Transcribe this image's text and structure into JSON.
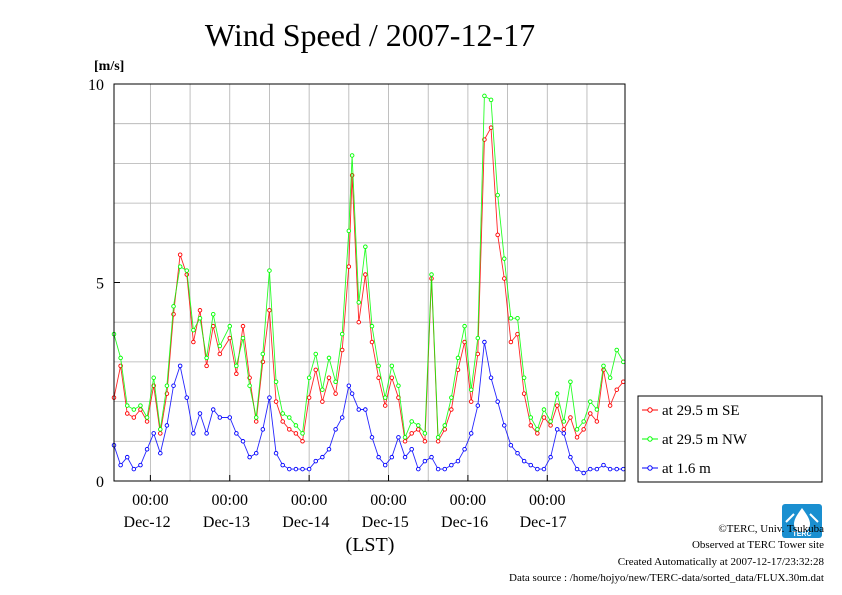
{
  "chart_data": {
    "type": "line",
    "title": "Wind Speed / 2007-12-17",
    "ylabel": "[m/s]",
    "xlabel": "(LST)",
    "ylim": [
      0,
      10
    ],
    "yticks": [
      "0",
      "5",
      "10"
    ],
    "xlim": [
      "2007-12-11T13:00",
      "2007-12-17T23:30"
    ],
    "grid": true,
    "legend_position": "right",
    "time_ticks": [
      {
        "time": "2007-12-12T00:00",
        "label": "00:00",
        "date": "Dec-12"
      },
      {
        "time": "2007-12-13T00:00",
        "label": "00:00",
        "date": "Dec-13"
      },
      {
        "time": "2007-12-14T00:00",
        "label": "00:00",
        "date": "Dec-14"
      },
      {
        "time": "2007-12-15T00:00",
        "label": "00:00",
        "date": "Dec-15"
      },
      {
        "time": "2007-12-16T00:00",
        "label": "00:00",
        "date": "Dec-16"
      },
      {
        "time": "2007-12-17T00:00",
        "label": "00:00",
        "date": "Dec-17"
      }
    ],
    "series": [
      {
        "name": "at 29.5 m SE",
        "color": "#ff0000",
        "points": [
          [
            "2007-12-11T13:00",
            2.1
          ],
          [
            "2007-12-11T15:00",
            2.9
          ],
          [
            "2007-12-11T17:00",
            1.7
          ],
          [
            "2007-12-11T19:00",
            1.6
          ],
          [
            "2007-12-11T21:00",
            1.8
          ],
          [
            "2007-12-11T23:00",
            1.5
          ],
          [
            "2007-12-12T01:00",
            2.4
          ],
          [
            "2007-12-12T03:00",
            1.2
          ],
          [
            "2007-12-12T05:00",
            2.2
          ],
          [
            "2007-12-12T07:00",
            4.2
          ],
          [
            "2007-12-12T09:00",
            5.7
          ],
          [
            "2007-12-12T11:00",
            5.2
          ],
          [
            "2007-12-12T13:00",
            3.5
          ],
          [
            "2007-12-12T15:00",
            4.3
          ],
          [
            "2007-12-12T17:00",
            2.9
          ],
          [
            "2007-12-12T19:00",
            3.9
          ],
          [
            "2007-12-12T21:00",
            3.2
          ],
          [
            "2007-12-13T00:00",
            3.6
          ],
          [
            "2007-12-13T02:00",
            2.7
          ],
          [
            "2007-12-13T04:00",
            3.9
          ],
          [
            "2007-12-13T06:00",
            2.6
          ],
          [
            "2007-12-13T08:00",
            1.5
          ],
          [
            "2007-12-13T10:00",
            3.0
          ],
          [
            "2007-12-13T12:00",
            4.3
          ],
          [
            "2007-12-13T14:00",
            2.0
          ],
          [
            "2007-12-13T16:00",
            1.5
          ],
          [
            "2007-12-13T18:00",
            1.3
          ],
          [
            "2007-12-13T20:00",
            1.2
          ],
          [
            "2007-12-13T22:00",
            1.0
          ],
          [
            "2007-12-14T00:00",
            2.1
          ],
          [
            "2007-12-14T02:00",
            2.8
          ],
          [
            "2007-12-14T04:00",
            2.0
          ],
          [
            "2007-12-14T06:00",
            2.6
          ],
          [
            "2007-12-14T08:00",
            2.2
          ],
          [
            "2007-12-14T10:00",
            3.3
          ],
          [
            "2007-12-14T12:00",
            5.4
          ],
          [
            "2007-12-14T13:00",
            7.7
          ],
          [
            "2007-12-14T15:00",
            4.0
          ],
          [
            "2007-12-14T17:00",
            5.2
          ],
          [
            "2007-12-14T19:00",
            3.5
          ],
          [
            "2007-12-14T21:00",
            2.6
          ],
          [
            "2007-12-14T23:00",
            1.9
          ],
          [
            "2007-12-15T01:00",
            2.6
          ],
          [
            "2007-12-15T03:00",
            2.1
          ],
          [
            "2007-12-15T05:00",
            1.0
          ],
          [
            "2007-12-15T07:00",
            1.2
          ],
          [
            "2007-12-15T09:00",
            1.3
          ],
          [
            "2007-12-15T11:00",
            1.0
          ],
          [
            "2007-12-15T13:00",
            5.1
          ],
          [
            "2007-12-15T15:00",
            1.0
          ],
          [
            "2007-12-15T17:00",
            1.3
          ],
          [
            "2007-12-15T19:00",
            1.8
          ],
          [
            "2007-12-15T21:00",
            2.8
          ],
          [
            "2007-12-15T23:00",
            3.5
          ],
          [
            "2007-12-16T01:00",
            2.0
          ],
          [
            "2007-12-16T03:00",
            3.2
          ],
          [
            "2007-12-16T05:00",
            8.6
          ],
          [
            "2007-12-16T07:00",
            8.9
          ],
          [
            "2007-12-16T09:00",
            6.2
          ],
          [
            "2007-12-16T11:00",
            5.1
          ],
          [
            "2007-12-16T13:00",
            3.5
          ],
          [
            "2007-12-16T15:00",
            3.7
          ],
          [
            "2007-12-16T17:00",
            2.2
          ],
          [
            "2007-12-16T19:00",
            1.4
          ],
          [
            "2007-12-16T21:00",
            1.2
          ],
          [
            "2007-12-16T23:00",
            1.6
          ],
          [
            "2007-12-17T01:00",
            1.4
          ],
          [
            "2007-12-17T03:00",
            1.9
          ],
          [
            "2007-12-17T05:00",
            1.3
          ],
          [
            "2007-12-17T07:00",
            1.6
          ],
          [
            "2007-12-17T09:00",
            1.1
          ],
          [
            "2007-12-17T11:00",
            1.3
          ],
          [
            "2007-12-17T13:00",
            1.7
          ],
          [
            "2007-12-17T15:00",
            1.5
          ],
          [
            "2007-12-17T17:00",
            2.8
          ],
          [
            "2007-12-17T19:00",
            1.9
          ],
          [
            "2007-12-17T21:00",
            2.3
          ],
          [
            "2007-12-17T23:00",
            2.5
          ]
        ]
      },
      {
        "name": "at 29.5 m NW",
        "color": "#00ff00",
        "points": [
          [
            "2007-12-11T13:00",
            3.7
          ],
          [
            "2007-12-11T15:00",
            3.1
          ],
          [
            "2007-12-11T17:00",
            1.9
          ],
          [
            "2007-12-11T19:00",
            1.8
          ],
          [
            "2007-12-11T21:00",
            1.9
          ],
          [
            "2007-12-11T23:00",
            1.6
          ],
          [
            "2007-12-12T01:00",
            2.6
          ],
          [
            "2007-12-12T03:00",
            1.3
          ],
          [
            "2007-12-12T05:00",
            2.4
          ],
          [
            "2007-12-12T07:00",
            4.4
          ],
          [
            "2007-12-12T09:00",
            5.4
          ],
          [
            "2007-12-12T11:00",
            5.3
          ],
          [
            "2007-12-12T13:00",
            3.8
          ],
          [
            "2007-12-12T15:00",
            4.1
          ],
          [
            "2007-12-12T17:00",
            3.1
          ],
          [
            "2007-12-12T19:00",
            4.2
          ],
          [
            "2007-12-12T21:00",
            3.4
          ],
          [
            "2007-12-13T00:00",
            3.9
          ],
          [
            "2007-12-13T02:00",
            2.9
          ],
          [
            "2007-12-13T04:00",
            3.6
          ],
          [
            "2007-12-13T06:00",
            2.4
          ],
          [
            "2007-12-13T08:00",
            1.6
          ],
          [
            "2007-12-13T10:00",
            3.2
          ],
          [
            "2007-12-13T12:00",
            5.3
          ],
          [
            "2007-12-13T14:00",
            2.5
          ],
          [
            "2007-12-13T16:00",
            1.7
          ],
          [
            "2007-12-13T18:00",
            1.6
          ],
          [
            "2007-12-13T20:00",
            1.4
          ],
          [
            "2007-12-13T22:00",
            1.2
          ],
          [
            "2007-12-14T00:00",
            2.6
          ],
          [
            "2007-12-14T02:00",
            3.2
          ],
          [
            "2007-12-14T04:00",
            2.3
          ],
          [
            "2007-12-14T06:00",
            3.1
          ],
          [
            "2007-12-14T08:00",
            2.5
          ],
          [
            "2007-12-14T10:00",
            3.7
          ],
          [
            "2007-12-14T12:00",
            6.3
          ],
          [
            "2007-12-14T13:00",
            8.2
          ],
          [
            "2007-12-14T15:00",
            4.5
          ],
          [
            "2007-12-14T17:00",
            5.9
          ],
          [
            "2007-12-14T19:00",
            3.9
          ],
          [
            "2007-12-14T21:00",
            2.9
          ],
          [
            "2007-12-14T23:00",
            2.1
          ],
          [
            "2007-12-15T01:00",
            2.9
          ],
          [
            "2007-12-15T03:00",
            2.4
          ],
          [
            "2007-12-15T05:00",
            1.1
          ],
          [
            "2007-12-15T07:00",
            1.5
          ],
          [
            "2007-12-15T09:00",
            1.4
          ],
          [
            "2007-12-15T11:00",
            1.2
          ],
          [
            "2007-12-15T13:00",
            5.2
          ],
          [
            "2007-12-15T15:00",
            1.1
          ],
          [
            "2007-12-15T17:00",
            1.4
          ],
          [
            "2007-12-15T19:00",
            2.1
          ],
          [
            "2007-12-15T21:00",
            3.1
          ],
          [
            "2007-12-15T23:00",
            3.9
          ],
          [
            "2007-12-16T01:00",
            2.3
          ],
          [
            "2007-12-16T03:00",
            3.6
          ],
          [
            "2007-12-16T05:00",
            9.7
          ],
          [
            "2007-12-16T07:00",
            9.6
          ],
          [
            "2007-12-16T09:00",
            7.2
          ],
          [
            "2007-12-16T11:00",
            5.6
          ],
          [
            "2007-12-16T13:00",
            4.1
          ],
          [
            "2007-12-16T15:00",
            4.1
          ],
          [
            "2007-12-16T17:00",
            2.6
          ],
          [
            "2007-12-16T19:00",
            1.6
          ],
          [
            "2007-12-16T21:00",
            1.3
          ],
          [
            "2007-12-16T23:00",
            1.8
          ],
          [
            "2007-12-17T01:00",
            1.5
          ],
          [
            "2007-12-17T03:00",
            2.2
          ],
          [
            "2007-12-17T05:00",
            1.5
          ],
          [
            "2007-12-17T07:00",
            2.5
          ],
          [
            "2007-12-17T09:00",
            1.3
          ],
          [
            "2007-12-17T11:00",
            1.5
          ],
          [
            "2007-12-17T13:00",
            2.0
          ],
          [
            "2007-12-17T15:00",
            1.8
          ],
          [
            "2007-12-17T17:00",
            2.9
          ],
          [
            "2007-12-17T19:00",
            2.6
          ],
          [
            "2007-12-17T21:00",
            3.3
          ],
          [
            "2007-12-17T23:00",
            3.0
          ]
        ]
      },
      {
        "name": "at 1.6 m",
        "color": "#0000ff",
        "points": [
          [
            "2007-12-11T13:00",
            0.9
          ],
          [
            "2007-12-11T15:00",
            0.4
          ],
          [
            "2007-12-11T17:00",
            0.6
          ],
          [
            "2007-12-11T19:00",
            0.3
          ],
          [
            "2007-12-11T21:00",
            0.4
          ],
          [
            "2007-12-11T23:00",
            0.8
          ],
          [
            "2007-12-12T01:00",
            1.2
          ],
          [
            "2007-12-12T03:00",
            0.7
          ],
          [
            "2007-12-12T05:00",
            1.4
          ],
          [
            "2007-12-12T07:00",
            2.4
          ],
          [
            "2007-12-12T09:00",
            2.9
          ],
          [
            "2007-12-12T11:00",
            2.1
          ],
          [
            "2007-12-12T13:00",
            1.2
          ],
          [
            "2007-12-12T15:00",
            1.7
          ],
          [
            "2007-12-12T17:00",
            1.2
          ],
          [
            "2007-12-12T19:00",
            1.8
          ],
          [
            "2007-12-12T21:00",
            1.6
          ],
          [
            "2007-12-13T00:00",
            1.6
          ],
          [
            "2007-12-13T02:00",
            1.2
          ],
          [
            "2007-12-13T04:00",
            1.0
          ],
          [
            "2007-12-13T06:00",
            0.6
          ],
          [
            "2007-12-13T08:00",
            0.7
          ],
          [
            "2007-12-13T10:00",
            1.3
          ],
          [
            "2007-12-13T12:00",
            2.1
          ],
          [
            "2007-12-13T14:00",
            0.7
          ],
          [
            "2007-12-13T16:00",
            0.4
          ],
          [
            "2007-12-13T18:00",
            0.3
          ],
          [
            "2007-12-13T20:00",
            0.3
          ],
          [
            "2007-12-13T22:00",
            0.3
          ],
          [
            "2007-12-14T00:00",
            0.3
          ],
          [
            "2007-12-14T02:00",
            0.5
          ],
          [
            "2007-12-14T04:00",
            0.6
          ],
          [
            "2007-12-14T06:00",
            0.8
          ],
          [
            "2007-12-14T08:00",
            1.3
          ],
          [
            "2007-12-14T10:00",
            1.6
          ],
          [
            "2007-12-14T12:00",
            2.4
          ],
          [
            "2007-12-14T13:00",
            2.2
          ],
          [
            "2007-12-14T15:00",
            1.8
          ],
          [
            "2007-12-14T17:00",
            1.8
          ],
          [
            "2007-12-14T19:00",
            1.1
          ],
          [
            "2007-12-14T21:00",
            0.6
          ],
          [
            "2007-12-14T23:00",
            0.4
          ],
          [
            "2007-12-15T01:00",
            0.6
          ],
          [
            "2007-12-15T03:00",
            1.1
          ],
          [
            "2007-12-15T05:00",
            0.6
          ],
          [
            "2007-12-15T07:00",
            0.8
          ],
          [
            "2007-12-15T09:00",
            0.3
          ],
          [
            "2007-12-15T11:00",
            0.5
          ],
          [
            "2007-12-15T13:00",
            0.6
          ],
          [
            "2007-12-15T15:00",
            0.3
          ],
          [
            "2007-12-15T17:00",
            0.3
          ],
          [
            "2007-12-15T19:00",
            0.4
          ],
          [
            "2007-12-15T21:00",
            0.5
          ],
          [
            "2007-12-15T23:00",
            0.8
          ],
          [
            "2007-12-16T01:00",
            1.2
          ],
          [
            "2007-12-16T03:00",
            1.9
          ],
          [
            "2007-12-16T05:00",
            3.5
          ],
          [
            "2007-12-16T07:00",
            2.6
          ],
          [
            "2007-12-16T09:00",
            2.0
          ],
          [
            "2007-12-16T11:00",
            1.4
          ],
          [
            "2007-12-16T13:00",
            0.9
          ],
          [
            "2007-12-16T15:00",
            0.7
          ],
          [
            "2007-12-16T17:00",
            0.5
          ],
          [
            "2007-12-16T19:00",
            0.4
          ],
          [
            "2007-12-16T21:00",
            0.3
          ],
          [
            "2007-12-16T23:00",
            0.3
          ],
          [
            "2007-12-17T01:00",
            0.6
          ],
          [
            "2007-12-17T03:00",
            1.3
          ],
          [
            "2007-12-17T05:00",
            1.2
          ],
          [
            "2007-12-17T07:00",
            0.6
          ],
          [
            "2007-12-17T09:00",
            0.3
          ],
          [
            "2007-12-17T11:00",
            0.2
          ],
          [
            "2007-12-17T13:00",
            0.3
          ],
          [
            "2007-12-17T15:00",
            0.3
          ],
          [
            "2007-12-17T17:00",
            0.4
          ],
          [
            "2007-12-17T19:00",
            0.3
          ],
          [
            "2007-12-17T21:00",
            0.3
          ],
          [
            "2007-12-17T23:00",
            0.3
          ]
        ]
      }
    ]
  },
  "footer": {
    "copyright": "©TERC, Univ. Tsukuba",
    "observed": "Observed at TERC Tower site",
    "created": "Created Automatically at 2007-12-17/23:32:28",
    "source": "Data source : /home/hojyo/new/TERC-data/sorted_data/FLUX.30m.dat"
  },
  "logo": {
    "text": "TERC",
    "color": "#1a8fd0",
    "icon": "terc-logo-icon"
  }
}
